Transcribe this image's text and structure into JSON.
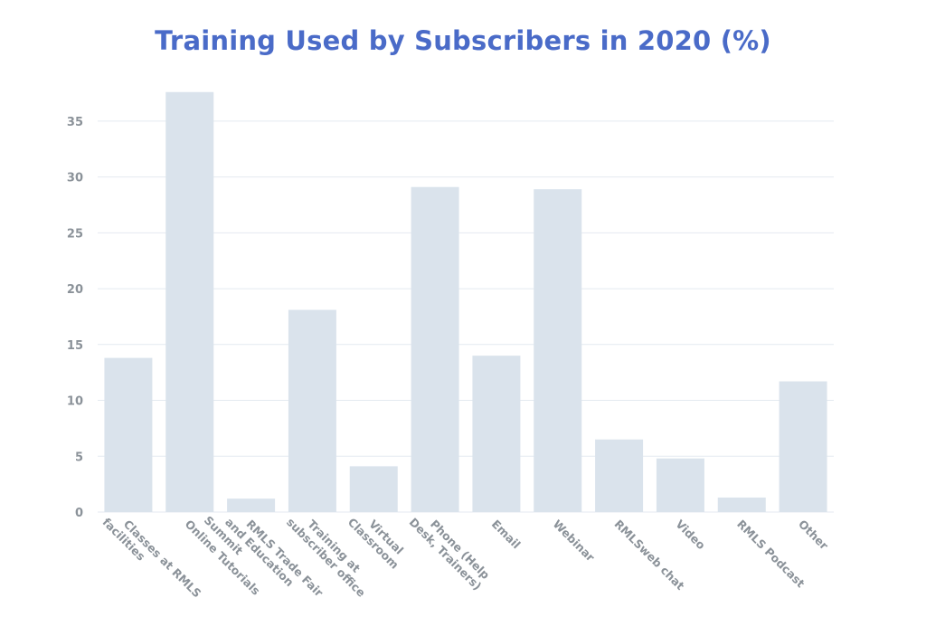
{
  "chart_data": {
    "type": "bar",
    "title": "Training Used by Subscribers in 2020 (%)",
    "xlabel": "",
    "ylabel": "",
    "ylim": [
      0,
      37.5
    ],
    "yticks": [
      0,
      5,
      10,
      15,
      20,
      25,
      30,
      35
    ],
    "grid": true,
    "categories": [
      "Classes at RMLS facilities",
      "Online Tutorials",
      "RMLS Trade Fair and Education Summit",
      "Training at subscriber office",
      "Virtual Classroom",
      "Phone (Help Desk, Trainers)",
      "Email",
      "Webinar",
      "RMLSweb chat",
      "Video",
      "RMLS Podcast",
      "Other"
    ],
    "category_lines": [
      [
        "Classes at RMLS",
        "facilities"
      ],
      [
        "Online Tutorials"
      ],
      [
        "RMLS Trade Fair",
        "and Education",
        "Summit"
      ],
      [
        "Training at",
        "subscriber office"
      ],
      [
        "Virtual",
        "Classroom"
      ],
      [
        "Phone (Help",
        "Desk, Trainers)"
      ],
      [
        "Email"
      ],
      [
        "Webinar"
      ],
      [
        "RMLSweb chat"
      ],
      [
        "Video"
      ],
      [
        "RMLS Podcast"
      ],
      [
        "Other"
      ]
    ],
    "values": [
      13.8,
      37.6,
      1.2,
      18.1,
      4.1,
      29.1,
      14.0,
      28.9,
      6.5,
      4.8,
      1.3,
      11.7
    ],
    "colors": {
      "bar": "#dae3ec",
      "grid": "#e4eaf0",
      "title": "#4a6bc8",
      "text": "#8b9299"
    }
  }
}
